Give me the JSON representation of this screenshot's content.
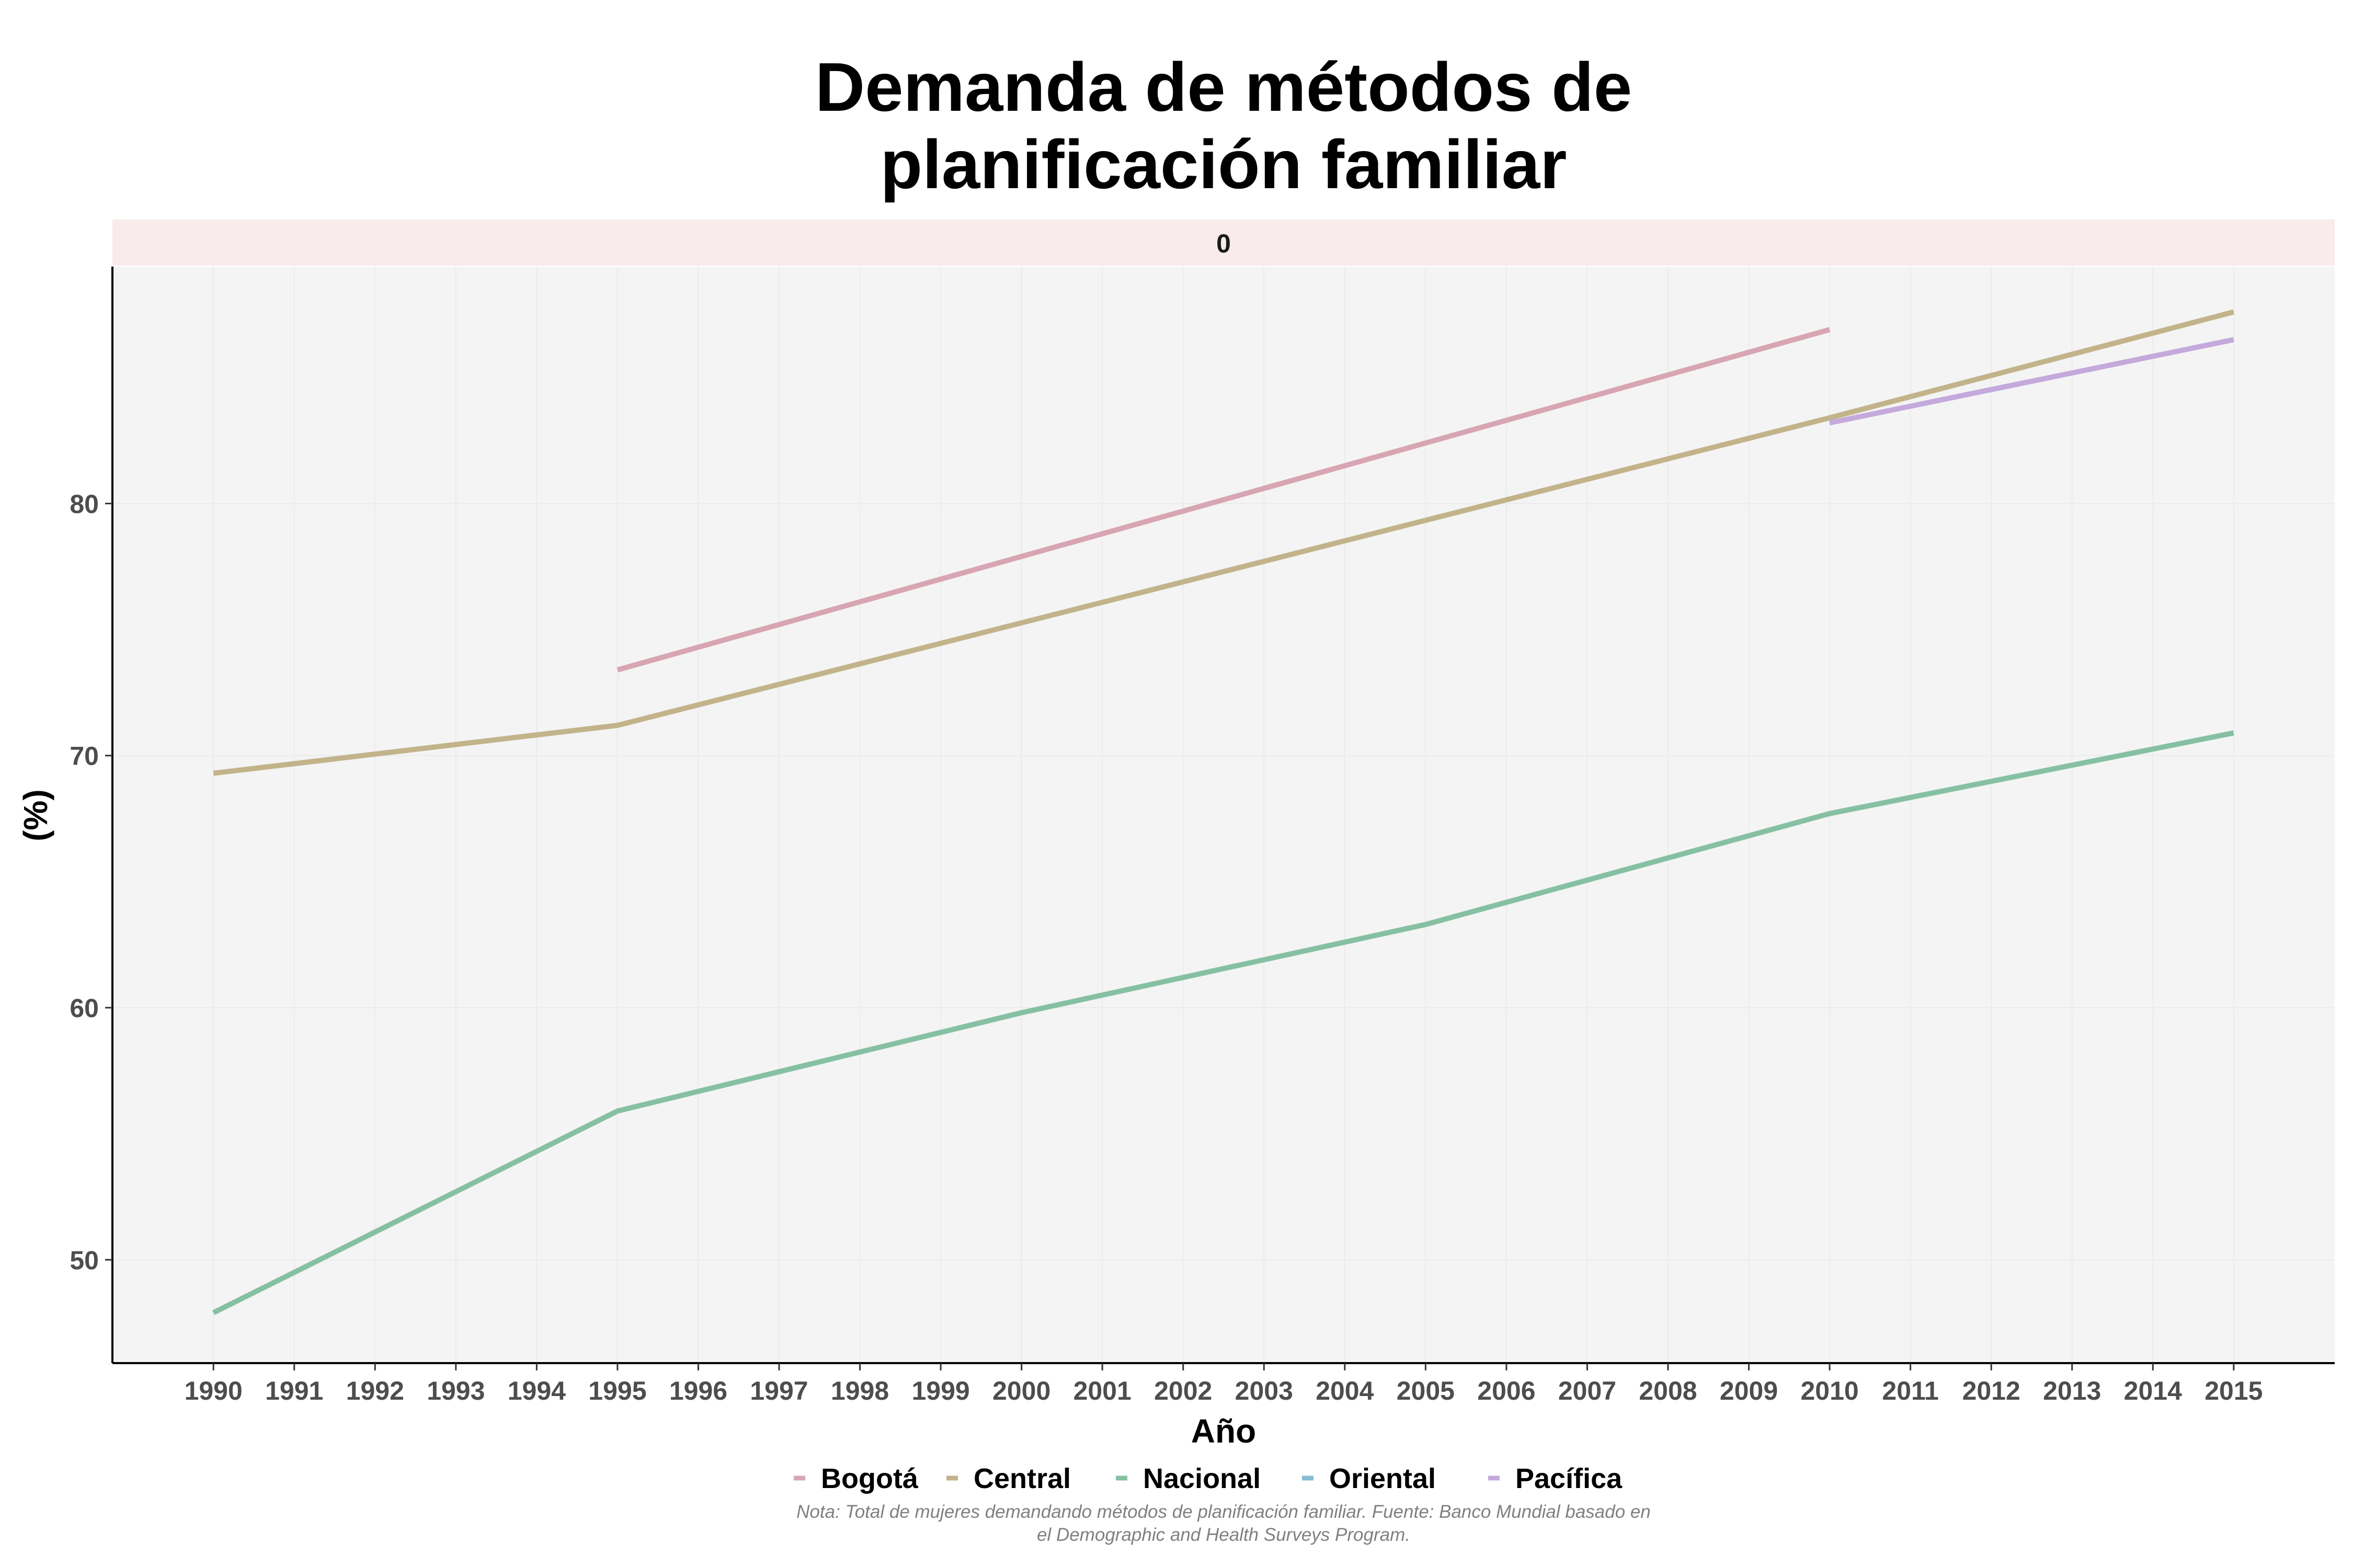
{
  "chart_data": {
    "type": "line",
    "title": [
      "Demanda de métodos de",
      "planificación familiar"
    ],
    "facet_label": "0",
    "xlabel": "Año",
    "ylabel": "(%)",
    "x": [
      1990,
      1991,
      1992,
      1993,
      1994,
      1995,
      1996,
      1997,
      1998,
      1999,
      2000,
      2001,
      2002,
      2003,
      2004,
      2005,
      2006,
      2007,
      2008,
      2009,
      2010,
      2011,
      2012,
      2013,
      2014,
      2015
    ],
    "xlim": [
      1988.75,
      2016.25
    ],
    "yticks": [
      50,
      60,
      70,
      80
    ],
    "ylim": [
      45.9,
      89.4
    ],
    "grid": true,
    "legend_position": "bottom",
    "series": [
      {
        "name": "Bogotá",
        "color": "#d8a5b3",
        "points": [
          [
            1995,
            73.4
          ],
          [
            2010,
            86.9
          ]
        ]
      },
      {
        "name": "Central",
        "color": "#c2b38a",
        "points": [
          [
            1990,
            69.3
          ],
          [
            1995,
            71.2
          ],
          [
            2010,
            83.4
          ],
          [
            2015,
            87.6
          ]
        ]
      },
      {
        "name": "Nacional",
        "color": "#86c0a3",
        "points": [
          [
            1990,
            47.9
          ],
          [
            1995,
            55.9
          ],
          [
            2000,
            59.8
          ],
          [
            2005,
            63.3
          ],
          [
            2010,
            67.7
          ],
          [
            2015,
            70.9
          ]
        ]
      },
      {
        "name": "Oriental",
        "color": "#88bcd2",
        "points": []
      },
      {
        "name": "Pacífica",
        "color": "#c4a9dc",
        "points": [
          [
            2010,
            83.2
          ],
          [
            2015,
            86.5
          ]
        ]
      }
    ],
    "caption": [
      "Nota: Total de mujeres demandando métodos de planificación familiar. Fuente: Banco Mundial basado en",
      "el Demographic and Health Surveys Program."
    ]
  }
}
